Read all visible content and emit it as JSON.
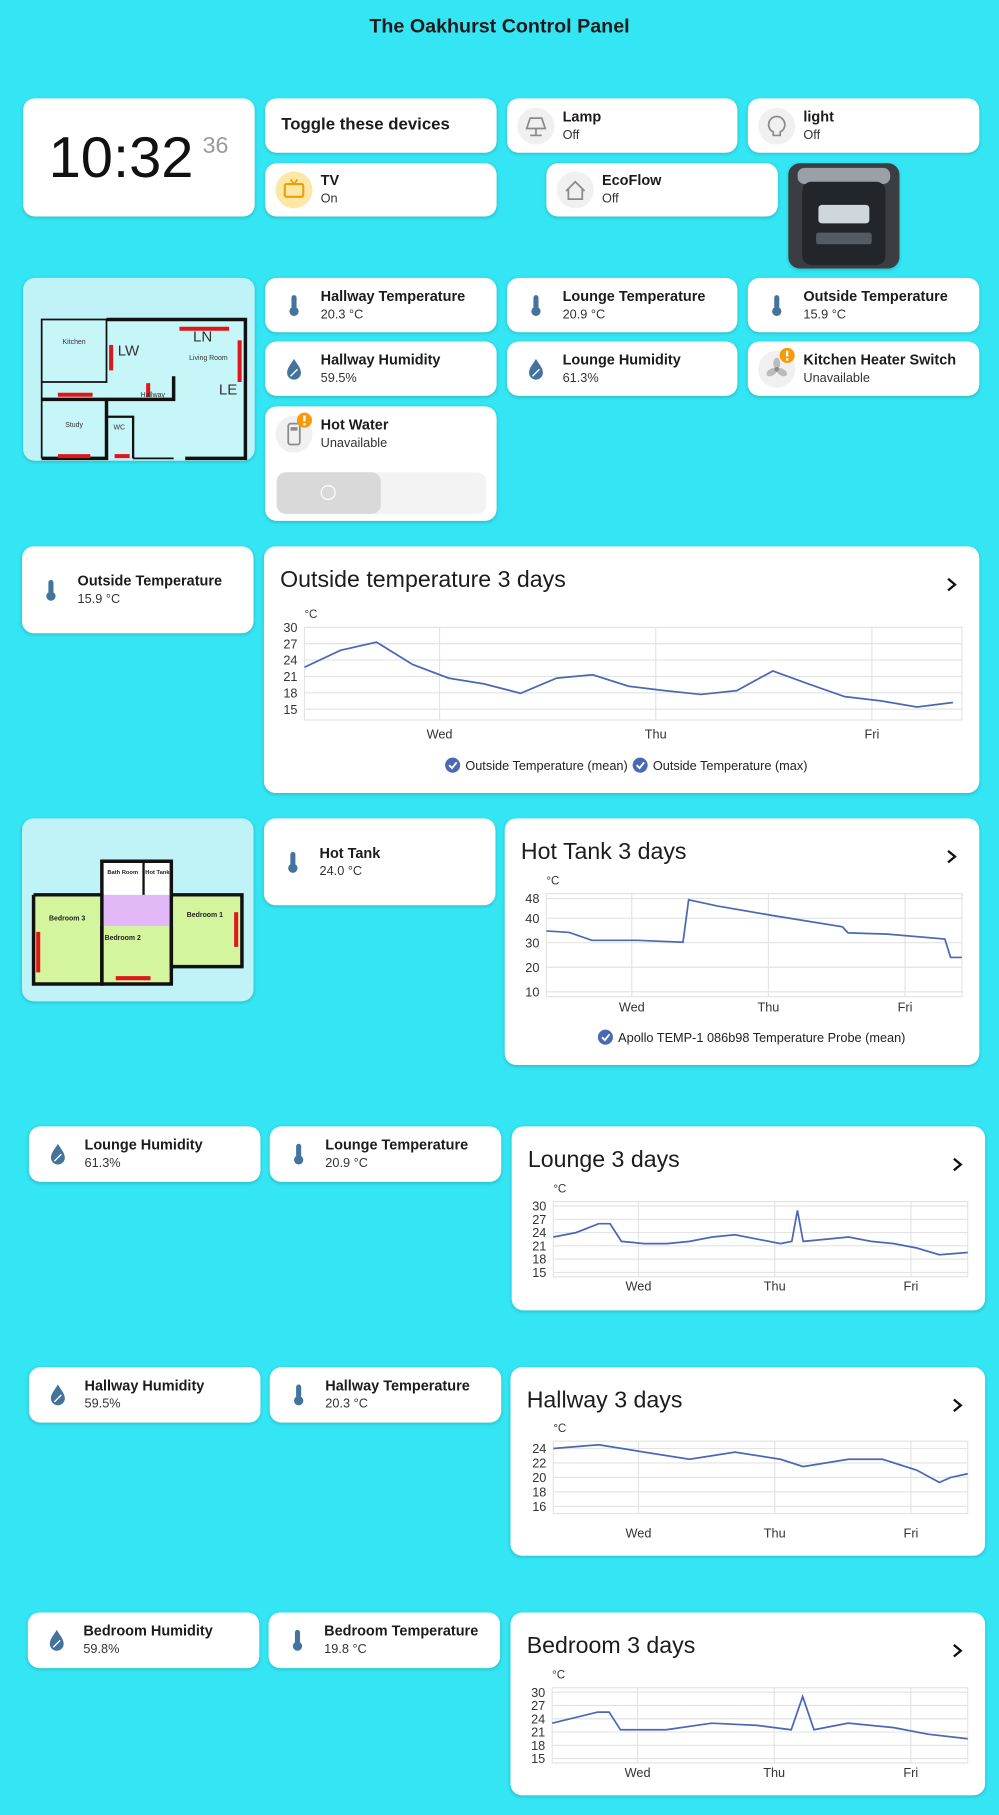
{
  "title": "The Oakhurst Control Panel",
  "clock": {
    "time": "10:32",
    "seconds": "36"
  },
  "heading": "Toggle these devices",
  "tiles": [
    {
      "name": "Lamp",
      "state": "Off"
    },
    {
      "name": "light",
      "state": "Off"
    },
    {
      "name": "TV",
      "state": "On"
    },
    {
      "name": "EcoFlow",
      "state": "Off"
    },
    {
      "name": "Hallway Temperature",
      "state": "20.3 °C"
    },
    {
      "name": "Lounge Temperature",
      "state": "20.9 °C"
    },
    {
      "name": "Outside Temperature",
      "state": "15.9 °C"
    },
    {
      "name": "Hallway Humidity",
      "state": "59.5%"
    },
    {
      "name": "Lounge Humidity",
      "state": "61.3%"
    },
    {
      "name": "Kitchen Heater Switch",
      "state": "Unavailable"
    },
    {
      "name": "Hot Water",
      "state": "Unavailable"
    },
    {
      "name": "Outside Temperature",
      "state": "15.9 °C"
    },
    {
      "name": "Hot Tank",
      "state": "24.0 °C"
    },
    {
      "name": "Lounge Humidity",
      "state": "61.3%"
    },
    {
      "name": "Lounge Temperature",
      "state": "20.9 °C"
    },
    {
      "name": "Hallway Humidity",
      "state": "59.5%"
    },
    {
      "name": "Hallway Temperature",
      "state": "20.3 °C"
    },
    {
      "name": "Bedroom Humidity",
      "state": "59.8%"
    },
    {
      "name": "Bedroom Temperature",
      "state": "19.8 °C"
    }
  ],
  "plans": [
    {
      "labels": [
        "Kitchen",
        "LW",
        "LN",
        "Living Room",
        "Hallway",
        "LE",
        "Study",
        "WC"
      ]
    },
    {
      "labels": [
        "Bath Room",
        "Hot Tank",
        "Bedroom 3",
        "Bedroom 2",
        "Bedroom 1"
      ]
    }
  ],
  "charts": [
    {
      "type": "line",
      "title": "Outside temperature 3 days",
      "ylabel": "°C",
      "color": "#4a68b4",
      "xlim": [
        0,
        73
      ],
      "ylim": [
        13,
        30
      ],
      "yticks": [
        15,
        18,
        21,
        24,
        27,
        30
      ],
      "xticks": [
        {
          "value": 15,
          "label": "Wed"
        },
        {
          "value": 39,
          "label": "Thu"
        },
        {
          "value": 63,
          "label": "Fri"
        }
      ],
      "x": [
        0,
        4,
        8,
        12,
        16,
        20,
        24,
        28,
        32,
        36,
        40,
        44,
        48,
        52,
        56,
        60,
        64,
        68,
        72
      ],
      "values": [
        22.7,
        25.8,
        27.3,
        23.2,
        20.7,
        19.6,
        17.9,
        20.7,
        21.3,
        19.2,
        18.4,
        17.7,
        18.4,
        22,
        19.6,
        17.3,
        16.5,
        15.4,
        16.2
      ],
      "legend": [
        "Outside Temperature (mean)",
        "Outside Temperature (max)"
      ]
    },
    {
      "type": "line",
      "title": "Hot Tank 3 days",
      "ylabel": "°C",
      "color": "#4a68b4",
      "xlim": [
        0,
        73
      ],
      "ylim": [
        8,
        50
      ],
      "yticks": [
        10,
        20,
        30,
        40,
        48
      ],
      "xticks": [
        {
          "value": 15,
          "label": "Wed"
        },
        {
          "value": 39,
          "label": "Thu"
        },
        {
          "value": 63,
          "label": "Fri"
        }
      ],
      "x": [
        0,
        4,
        8,
        16,
        24,
        25,
        30,
        40,
        52,
        53,
        60,
        70,
        71,
        73
      ],
      "values": [
        34.8,
        34.2,
        31,
        31,
        30.2,
        47.5,
        45,
        41,
        36.5,
        34,
        33.5,
        31.5,
        24,
        24
      ],
      "legend": [
        "Apollo TEMP-1 086b98 Temperature Probe (mean)"
      ]
    },
    {
      "type": "line",
      "title": "Lounge 3 days",
      "ylabel": "°C",
      "color": "#4a68b4",
      "xlim": [
        0,
        73
      ],
      "ylim": [
        14,
        31
      ],
      "yticks": [
        15,
        18,
        21,
        24,
        27,
        30
      ],
      "xticks": [
        {
          "value": 15,
          "label": "Wed"
        },
        {
          "value": 39,
          "label": "Thu"
        },
        {
          "value": 63,
          "label": "Fri"
        }
      ],
      "x": [
        0,
        4,
        8,
        10,
        12,
        16,
        20,
        24,
        28,
        32,
        36,
        40,
        42,
        43,
        44,
        48,
        52,
        56,
        60,
        64,
        68,
        73
      ],
      "values": [
        23,
        24,
        26,
        26,
        22,
        21.5,
        21.5,
        22,
        23,
        23.5,
        22.5,
        21.5,
        22,
        29,
        22,
        22.5,
        23,
        22,
        21.5,
        20.5,
        19,
        19.5
      ]
    },
    {
      "type": "line",
      "title": "Hallway 3 days",
      "ylabel": "°C",
      "color": "#4a68b4",
      "xlim": [
        0,
        73
      ],
      "ylim": [
        15,
        25
      ],
      "yticks": [
        16,
        18,
        20,
        22,
        24
      ],
      "xticks": [
        {
          "value": 15,
          "label": "Wed"
        },
        {
          "value": 39,
          "label": "Thu"
        },
        {
          "value": 63,
          "label": "Fri"
        }
      ],
      "x": [
        0,
        8,
        16,
        24,
        32,
        40,
        44,
        52,
        58,
        64,
        68,
        70,
        73
      ],
      "values": [
        24,
        24.5,
        23.5,
        22.5,
        23.5,
        22.5,
        21.5,
        22.5,
        22.5,
        21,
        19.3,
        20,
        20.5
      ]
    },
    {
      "type": "line",
      "title": "Bedroom 3 days",
      "ylabel": "°C",
      "color": "#4a68b4",
      "xlim": [
        0,
        73
      ],
      "ylim": [
        14,
        31
      ],
      "yticks": [
        15,
        18,
        21,
        24,
        27,
        30
      ],
      "xticks": [
        {
          "value": 15,
          "label": "Wed"
        },
        {
          "value": 39,
          "label": "Thu"
        },
        {
          "value": 63,
          "label": "Fri"
        }
      ],
      "x": [
        0,
        8,
        10,
        12,
        20,
        28,
        36,
        42,
        44,
        46,
        52,
        60,
        66,
        73
      ],
      "values": [
        23,
        25.5,
        25.5,
        21.5,
        21.5,
        23,
        22.5,
        21.5,
        29,
        21.5,
        23,
        22,
        20.5,
        19.5
      ]
    }
  ]
}
